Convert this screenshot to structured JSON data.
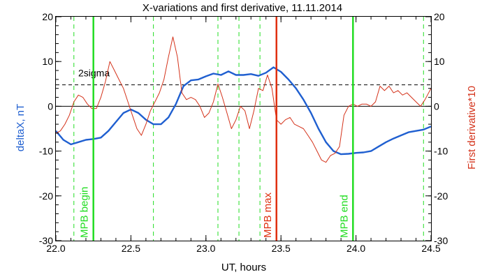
{
  "chart_data": {
    "type": "line",
    "title": "X-variations and first derivative, 11.11.2014",
    "xlabel": "UT, hours",
    "ylabel_left": "deltaX, nT",
    "ylabel_right": "First derivative*10",
    "xlim": [
      22.0,
      24.5
    ],
    "ylim_left": [
      -30,
      20
    ],
    "ylim_right": [
      -30,
      20
    ],
    "xticks": [
      "22.0",
      "22.5",
      "23.0",
      "23.5",
      "24.0",
      "24.5"
    ],
    "xtick_values": [
      22.0,
      22.5,
      23.0,
      23.5,
      24.0,
      24.5
    ],
    "yticks_left": [
      "-30",
      "-20",
      "-10",
      "0",
      "10",
      "20"
    ],
    "yticks_right": [
      "-30",
      "-20",
      "-10",
      "0",
      "10",
      "20"
    ],
    "ytick_values": [
      -30,
      -20,
      -10,
      0,
      10,
      20
    ],
    "grid": false,
    "colors": {
      "deltaX": "#1f5fd0",
      "derivative": "#d4321a",
      "mpb_markers": "#22dd22",
      "mpb_max": "#e03010",
      "axis_left_label": "#1f5fd0",
      "axis_right_label": "#d4321a"
    },
    "series": [
      {
        "key": "deltaX",
        "axis": "left",
        "x": [
          22.0,
          22.05,
          22.1,
          22.15,
          22.2,
          22.25,
          22.3,
          22.35,
          22.4,
          22.45,
          22.5,
          22.55,
          22.6,
          22.65,
          22.7,
          22.75,
          22.8,
          22.85,
          22.9,
          22.95,
          23.0,
          23.05,
          23.1,
          23.15,
          23.2,
          23.25,
          23.3,
          23.35,
          23.4,
          23.45,
          23.5,
          23.55,
          23.6,
          23.65,
          23.7,
          23.75,
          23.8,
          23.85,
          23.9,
          23.95,
          24.0,
          24.05,
          24.1,
          24.15,
          24.2,
          24.25,
          24.3,
          24.35,
          24.4,
          24.45,
          24.5
        ],
        "values": [
          -5.5,
          -7.5,
          -8.5,
          -8.0,
          -7.5,
          -7.3,
          -7.0,
          -5.5,
          -3.5,
          -1.5,
          -0.7,
          -1.5,
          -3.0,
          -4.0,
          -4.0,
          -2.5,
          0.5,
          4.5,
          5.8,
          6.0,
          6.7,
          7.3,
          7.0,
          7.8,
          7.0,
          7.0,
          7.2,
          6.8,
          7.5,
          8.7,
          7.7,
          6.0,
          4.0,
          1.5,
          -1.5,
          -5.0,
          -8.0,
          -10.0,
          -10.7,
          -10.6,
          -10.4,
          -10.3,
          -10.0,
          -9.0,
          -8.0,
          -7.2,
          -6.5,
          -5.8,
          -5.5,
          -5.2,
          -4.5
        ]
      },
      {
        "key": "derivative",
        "axis": "right",
        "x": [
          22.0,
          22.03,
          22.06,
          22.09,
          22.12,
          22.15,
          22.18,
          22.21,
          22.24,
          22.27,
          22.3,
          22.33,
          22.36,
          22.39,
          22.42,
          22.45,
          22.48,
          22.51,
          22.54,
          22.57,
          22.6,
          22.63,
          22.66,
          22.69,
          22.72,
          22.75,
          22.78,
          22.81,
          22.84,
          22.87,
          22.9,
          22.93,
          22.96,
          22.99,
          23.02,
          23.05,
          23.08,
          23.11,
          23.14,
          23.17,
          23.2,
          23.23,
          23.26,
          23.29,
          23.32,
          23.35,
          23.38,
          23.41,
          23.44,
          23.47,
          23.5,
          23.53,
          23.56,
          23.59,
          23.62,
          23.65,
          23.68,
          23.71,
          23.74,
          23.77,
          23.8,
          23.83,
          23.86,
          23.89,
          23.92,
          23.95,
          23.98,
          24.01,
          24.04,
          24.07,
          24.1,
          24.13,
          24.16,
          24.19,
          24.22,
          24.25,
          24.28,
          24.31,
          24.34,
          24.37,
          24.4,
          24.43,
          24.46,
          24.5
        ],
        "values": [
          -6.0,
          -5.5,
          -4.0,
          -2.0,
          1.0,
          2.5,
          2.0,
          0.5,
          -0.5,
          -0.5,
          2.0,
          5.5,
          10.0,
          8.0,
          6.0,
          4.0,
          1.0,
          -2.0,
          -5.0,
          -6.5,
          -4.0,
          -1.0,
          1.0,
          3.0,
          6.0,
          11.0,
          15.5,
          11.0,
          3.0,
          1.5,
          2.0,
          1.5,
          0.0,
          -2.5,
          -1.5,
          1.0,
          5.0,
          2.0,
          -1.5,
          -5.0,
          -3.0,
          0.0,
          -1.0,
          -5.0,
          -1.0,
          4.0,
          3.5,
          7.0,
          4.0,
          -3.0,
          -4.0,
          -3.0,
          -2.5,
          -4.0,
          -4.5,
          -5.0,
          -6.5,
          -8.0,
          -10.0,
          -12.0,
          -12.5,
          -11.0,
          -10.5,
          -9.0,
          -2.0,
          0.0,
          0.5,
          0.0,
          0.5,
          0.5,
          0.0,
          1.0,
          4.5,
          3.5,
          4.5,
          3.0,
          3.5,
          2.5,
          3.0,
          2.0,
          1.0,
          0.0,
          1.5,
          4.0
        ]
      }
    ],
    "reference_lines": [
      {
        "y": 0,
        "style": "solid",
        "label": ""
      },
      {
        "y": 4.8,
        "style": "dashed",
        "label": "2sigma"
      }
    ],
    "vertical_dashed_lines_x": [
      22.12,
      22.65,
      23.08,
      23.22,
      23.36,
      24.45
    ],
    "markers": [
      {
        "x": 22.25,
        "label": "MPB begin",
        "kind": "mpb"
      },
      {
        "x": 23.47,
        "label": "MPB max",
        "kind": "max"
      },
      {
        "x": 23.98,
        "label": "MPB end",
        "kind": "mpb"
      }
    ]
  }
}
